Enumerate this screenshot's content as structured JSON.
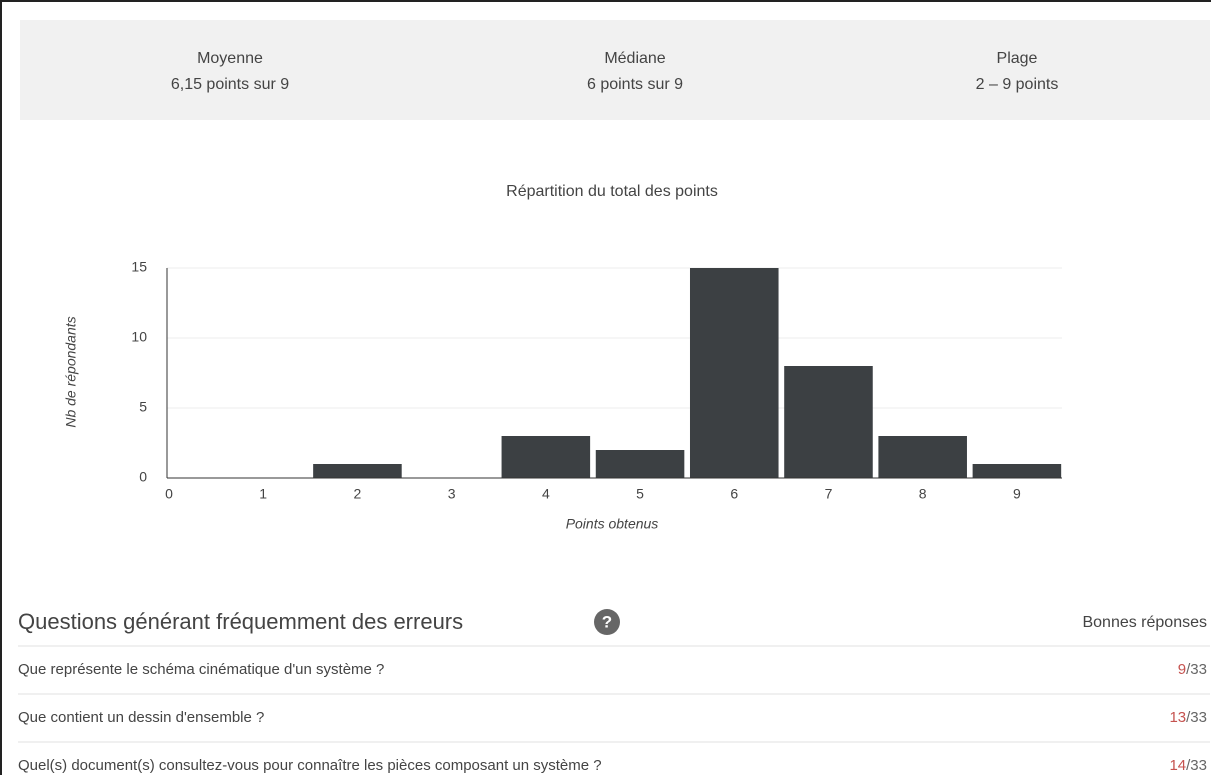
{
  "stats": [
    {
      "label": "Moyenne",
      "value": "6,15 points sur 9"
    },
    {
      "label": "Médiane",
      "value": "6 points sur 9"
    },
    {
      "label": "Plage",
      "value": "2 – 9 points"
    }
  ],
  "chart_data": {
    "type": "bar",
    "title": "Répartition du total des points",
    "x_label": "Points obtenus",
    "y_label": "Nb de répondants",
    "x": [
      0,
      1,
      2,
      3,
      4,
      5,
      6,
      7,
      8,
      9
    ],
    "values": [
      0,
      0,
      1,
      0,
      3,
      2,
      15,
      8,
      3,
      1
    ],
    "color": "#3c4043",
    "xlim": [
      0,
      9.5
    ],
    "xticks": [
      0,
      1,
      2,
      3,
      4,
      5,
      6,
      7,
      8,
      9
    ],
    "ylim": [
      0,
      15
    ],
    "yticks": [
      0,
      5,
      10,
      15
    ],
    "grid": true
  },
  "questions": {
    "title": "Questions générant fréquemment des erreurs",
    "column": "Bonnes réponses",
    "rows": [
      {
        "text": "Que représente le schéma cinématique d'un système ?",
        "correct": "9",
        "total": "/33"
      },
      {
        "text": "Que contient un dessin d'ensemble ?",
        "correct": "13",
        "total": "/33"
      },
      {
        "text": "Quel(s) document(s) consultez-vous pour connaître les pièces composant un système ?",
        "correct": "14",
        "total": "/33"
      }
    ]
  }
}
